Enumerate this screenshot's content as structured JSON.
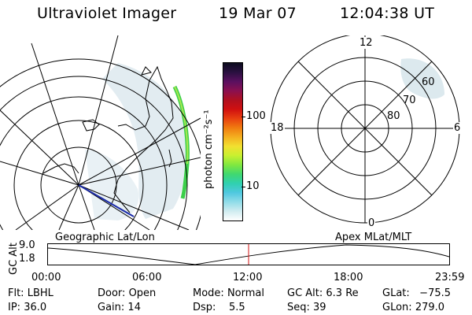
{
  "header": {
    "instrument": "Ultraviolet Imager",
    "date": "19 Mar 07",
    "time": "12:04:38 UT"
  },
  "colorbar": {
    "label": "photon cm⁻²s⁻¹",
    "ticks": [
      "100",
      "10"
    ],
    "colors": [
      "#0b0b1e",
      "#2a1040",
      "#5a1060",
      "#8a1050",
      "#b01020",
      "#d01010",
      "#e84010",
      "#f07c10",
      "#f4b020",
      "#f2e030",
      "#c8f030",
      "#80e840",
      "#40d870",
      "#30d0b0",
      "#50c8e0",
      "#90dce8",
      "#d0ecf0",
      "#ffffff"
    ]
  },
  "left_panel": {
    "label": "Geographic Lat/Lon"
  },
  "right_panel": {
    "label": "Apex MLat/MLT",
    "mlt_labels": {
      "top": "12",
      "left": "18",
      "right": "6",
      "bottom": "0"
    },
    "lat_labels": [
      "60",
      "70",
      "80"
    ]
  },
  "timeline": {
    "ylabel": "GC Alt",
    "yticks": [
      "9.0",
      "1.8"
    ],
    "xticks": [
      "00:00",
      "06:00",
      "12:00",
      "18:00",
      "23:59"
    ],
    "marker_color": "#d01010"
  },
  "footer": {
    "flt_label": "Flt:",
    "flt_value": "LBHL",
    "ip_label": "IP:",
    "ip_value": "36.0",
    "door_label": "Door:",
    "door_value": "Open",
    "gain_label": "Gain:",
    "gain_value": "14",
    "mode_label": "Mode:",
    "mode_value": "Normal",
    "dsp_label": "Dsp:",
    "dsp_value": "5.5",
    "gcalt_label": "GC Alt:",
    "gcalt_value": "6.3 Re",
    "seq_label": "Seq:",
    "seq_value": "39",
    "glat_label": "GLat:",
    "glat_value": "−75.5",
    "glon_label": "GLon:",
    "glon_value": "279.0"
  }
}
